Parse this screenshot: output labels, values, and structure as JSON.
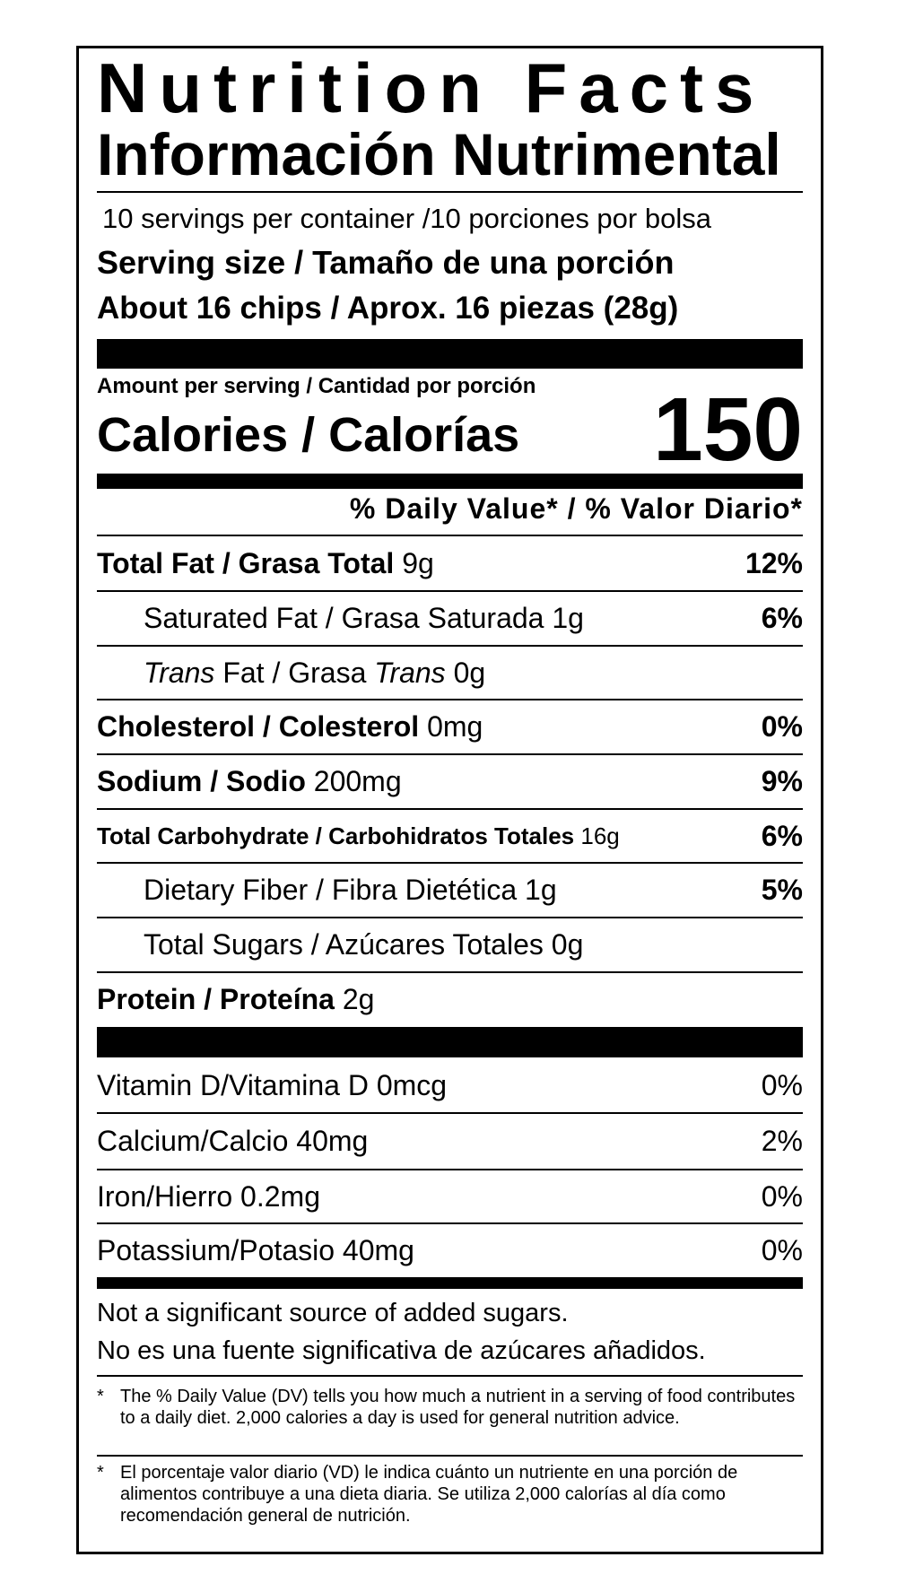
{
  "title": "Nutrition Facts",
  "subtitle": "Información Nutrimental",
  "servings": "10 servings per container /10 porciones por bolsa",
  "serving_size_label": "Serving size / Tamaño de una porción",
  "serving_size_value": "About 16 chips / Aprox. 16 piezas (28g)",
  "amount_per_serving": "Amount per serving / Cantidad por porción",
  "calories_label": "Calories / Calorías",
  "calories_value": "150",
  "dv_header": "% Daily Value* / % Valor Diario*",
  "nutrients": [
    {
      "name": "Total Fat / Grasa Total",
      "amount": "9g",
      "dv": "12%"
    },
    {
      "name": "Saturated Fat / Grasa Saturada",
      "amount": "1g",
      "dv": "6%"
    },
    {
      "name_italic_1": "Trans",
      "name_mid": " Fat / Grasa ",
      "name_italic_2": "Trans",
      "amount": "0g",
      "dv": ""
    },
    {
      "name": "Cholesterol / Colesterol",
      "amount": "0mg",
      "dv": "0%"
    },
    {
      "name": "Sodium / Sodio",
      "amount": "200mg",
      "dv": "9%"
    },
    {
      "name": "Total Carbohydrate / Carbohidratos Totales",
      "amount": "16g",
      "dv": "6%"
    },
    {
      "name": "Dietary Fiber / Fibra Dietética",
      "amount": "1g",
      "dv": "5%"
    },
    {
      "name": "Total Sugars / Azúcares Totales",
      "amount": "0g",
      "dv": ""
    },
    {
      "name": "Protein / Proteína",
      "amount": "2g",
      "dv": ""
    }
  ],
  "vitamins": [
    {
      "name": "Vitamin D/Vitamina D",
      "amount": "0mcg",
      "dv": "0%"
    },
    {
      "name": "Calcium/Calcio",
      "amount": "40mg",
      "dv": "2%"
    },
    {
      "name": "Iron/Hierro",
      "amount": "0.2mg",
      "dv": "0%"
    },
    {
      "name": "Potassium/Potasio",
      "amount": "40mg",
      "dv": "0%"
    }
  ],
  "added_sugars_note": [
    "Not a significant source of added sugars.",
    "No es una fuente significativa de azúcares añadidos."
  ],
  "footnotes": [
    {
      "mark": "*",
      "text": "The % Daily Value (DV) tells you how much a nutrient in a serving of food contributes to a daily diet. 2,000 calories a day is used for general nutrition advice."
    },
    {
      "mark": "*",
      "text": "El porcentaje valor diario (VD) le indica cuánto un nutriente en una porción de alimentos contribuye a una dieta diaria. Se utiliza 2,000 calorías al día como recomendación general de nutrición."
    }
  ]
}
